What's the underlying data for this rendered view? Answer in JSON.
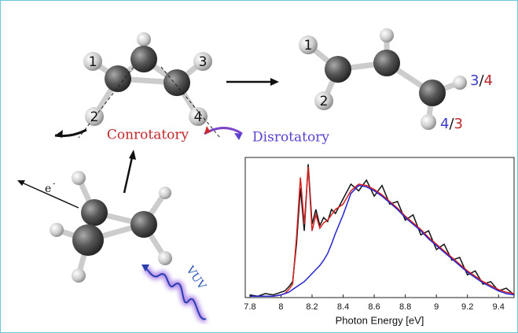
{
  "labels": {
    "left_atoms": [
      "1",
      "2",
      "3",
      "4"
    ],
    "right_atoms": [
      "1",
      "2"
    ],
    "right_pair_top": [
      "3",
      "/",
      "4"
    ],
    "right_pair_bottom": [
      "4",
      "/",
      "3"
    ],
    "conrotatory": "Conrotatory",
    "disrotatory": "Disrotatory",
    "electron": "e",
    "electron_charge": "-",
    "vuv": "VUV"
  },
  "chart_data": {
    "type": "line",
    "xlabel": "Photon Energy [eV]",
    "x": [
      7.8,
      7.85,
      7.9,
      7.95,
      8.0,
      8.025,
      8.05,
      8.075,
      8.1,
      8.125,
      8.15,
      8.175,
      8.2,
      8.225,
      8.25,
      8.275,
      8.3,
      8.325,
      8.35,
      8.4,
      8.45,
      8.5,
      8.55,
      8.6,
      8.65,
      8.7,
      8.75,
      8.8,
      8.85,
      8.9,
      8.95,
      9.0,
      9.05,
      9.1,
      9.15,
      9.2,
      9.25,
      9.3,
      9.35,
      9.4,
      9.45,
      9.5
    ],
    "series": [
      {
        "color": "#111111",
        "values": [
          0.02,
          0.01,
          0.03,
          0.02,
          0.04,
          0.05,
          0.08,
          0.12,
          0.4,
          0.82,
          0.5,
          1.0,
          0.55,
          0.66,
          0.54,
          0.6,
          0.57,
          0.66,
          0.63,
          0.74,
          0.85,
          0.8,
          0.88,
          0.76,
          0.84,
          0.7,
          0.72,
          0.58,
          0.62,
          0.47,
          0.5,
          0.36,
          0.4,
          0.28,
          0.3,
          0.17,
          0.2,
          0.1,
          0.12,
          0.05,
          0.07,
          0.02
        ]
      },
      {
        "color": "#d62020",
        "values": [
          0.01,
          0.01,
          0.01,
          0.01,
          0.02,
          0.03,
          0.06,
          0.1,
          0.45,
          0.9,
          0.55,
          0.98,
          0.5,
          0.62,
          0.52,
          0.56,
          0.58,
          0.62,
          0.66,
          0.7,
          0.8,
          0.85,
          0.84,
          0.81,
          0.77,
          0.72,
          0.67,
          0.61,
          0.56,
          0.51,
          0.45,
          0.4,
          0.35,
          0.3,
          0.25,
          0.2,
          0.16,
          0.12,
          0.09,
          0.06,
          0.04,
          0.03
        ]
      },
      {
        "color": "#2424d0",
        "values": [
          0.01,
          0.01,
          0.01,
          0.01,
          0.02,
          0.03,
          0.04,
          0.06,
          0.08,
          0.1,
          0.12,
          0.15,
          0.18,
          0.21,
          0.24,
          0.28,
          0.33,
          0.4,
          0.48,
          0.62,
          0.78,
          0.84,
          0.83,
          0.8,
          0.76,
          0.71,
          0.66,
          0.6,
          0.55,
          0.5,
          0.44,
          0.39,
          0.34,
          0.29,
          0.24,
          0.19,
          0.15,
          0.11,
          0.08,
          0.05,
          0.03,
          0.02
        ]
      }
    ],
    "xlim": [
      7.77,
      9.5
    ],
    "ylim": [
      0,
      1.05
    ],
    "xticks": [
      7.8,
      8,
      8.2,
      8.4,
      8.6,
      8.8,
      9,
      9.2,
      9.4
    ]
  }
}
